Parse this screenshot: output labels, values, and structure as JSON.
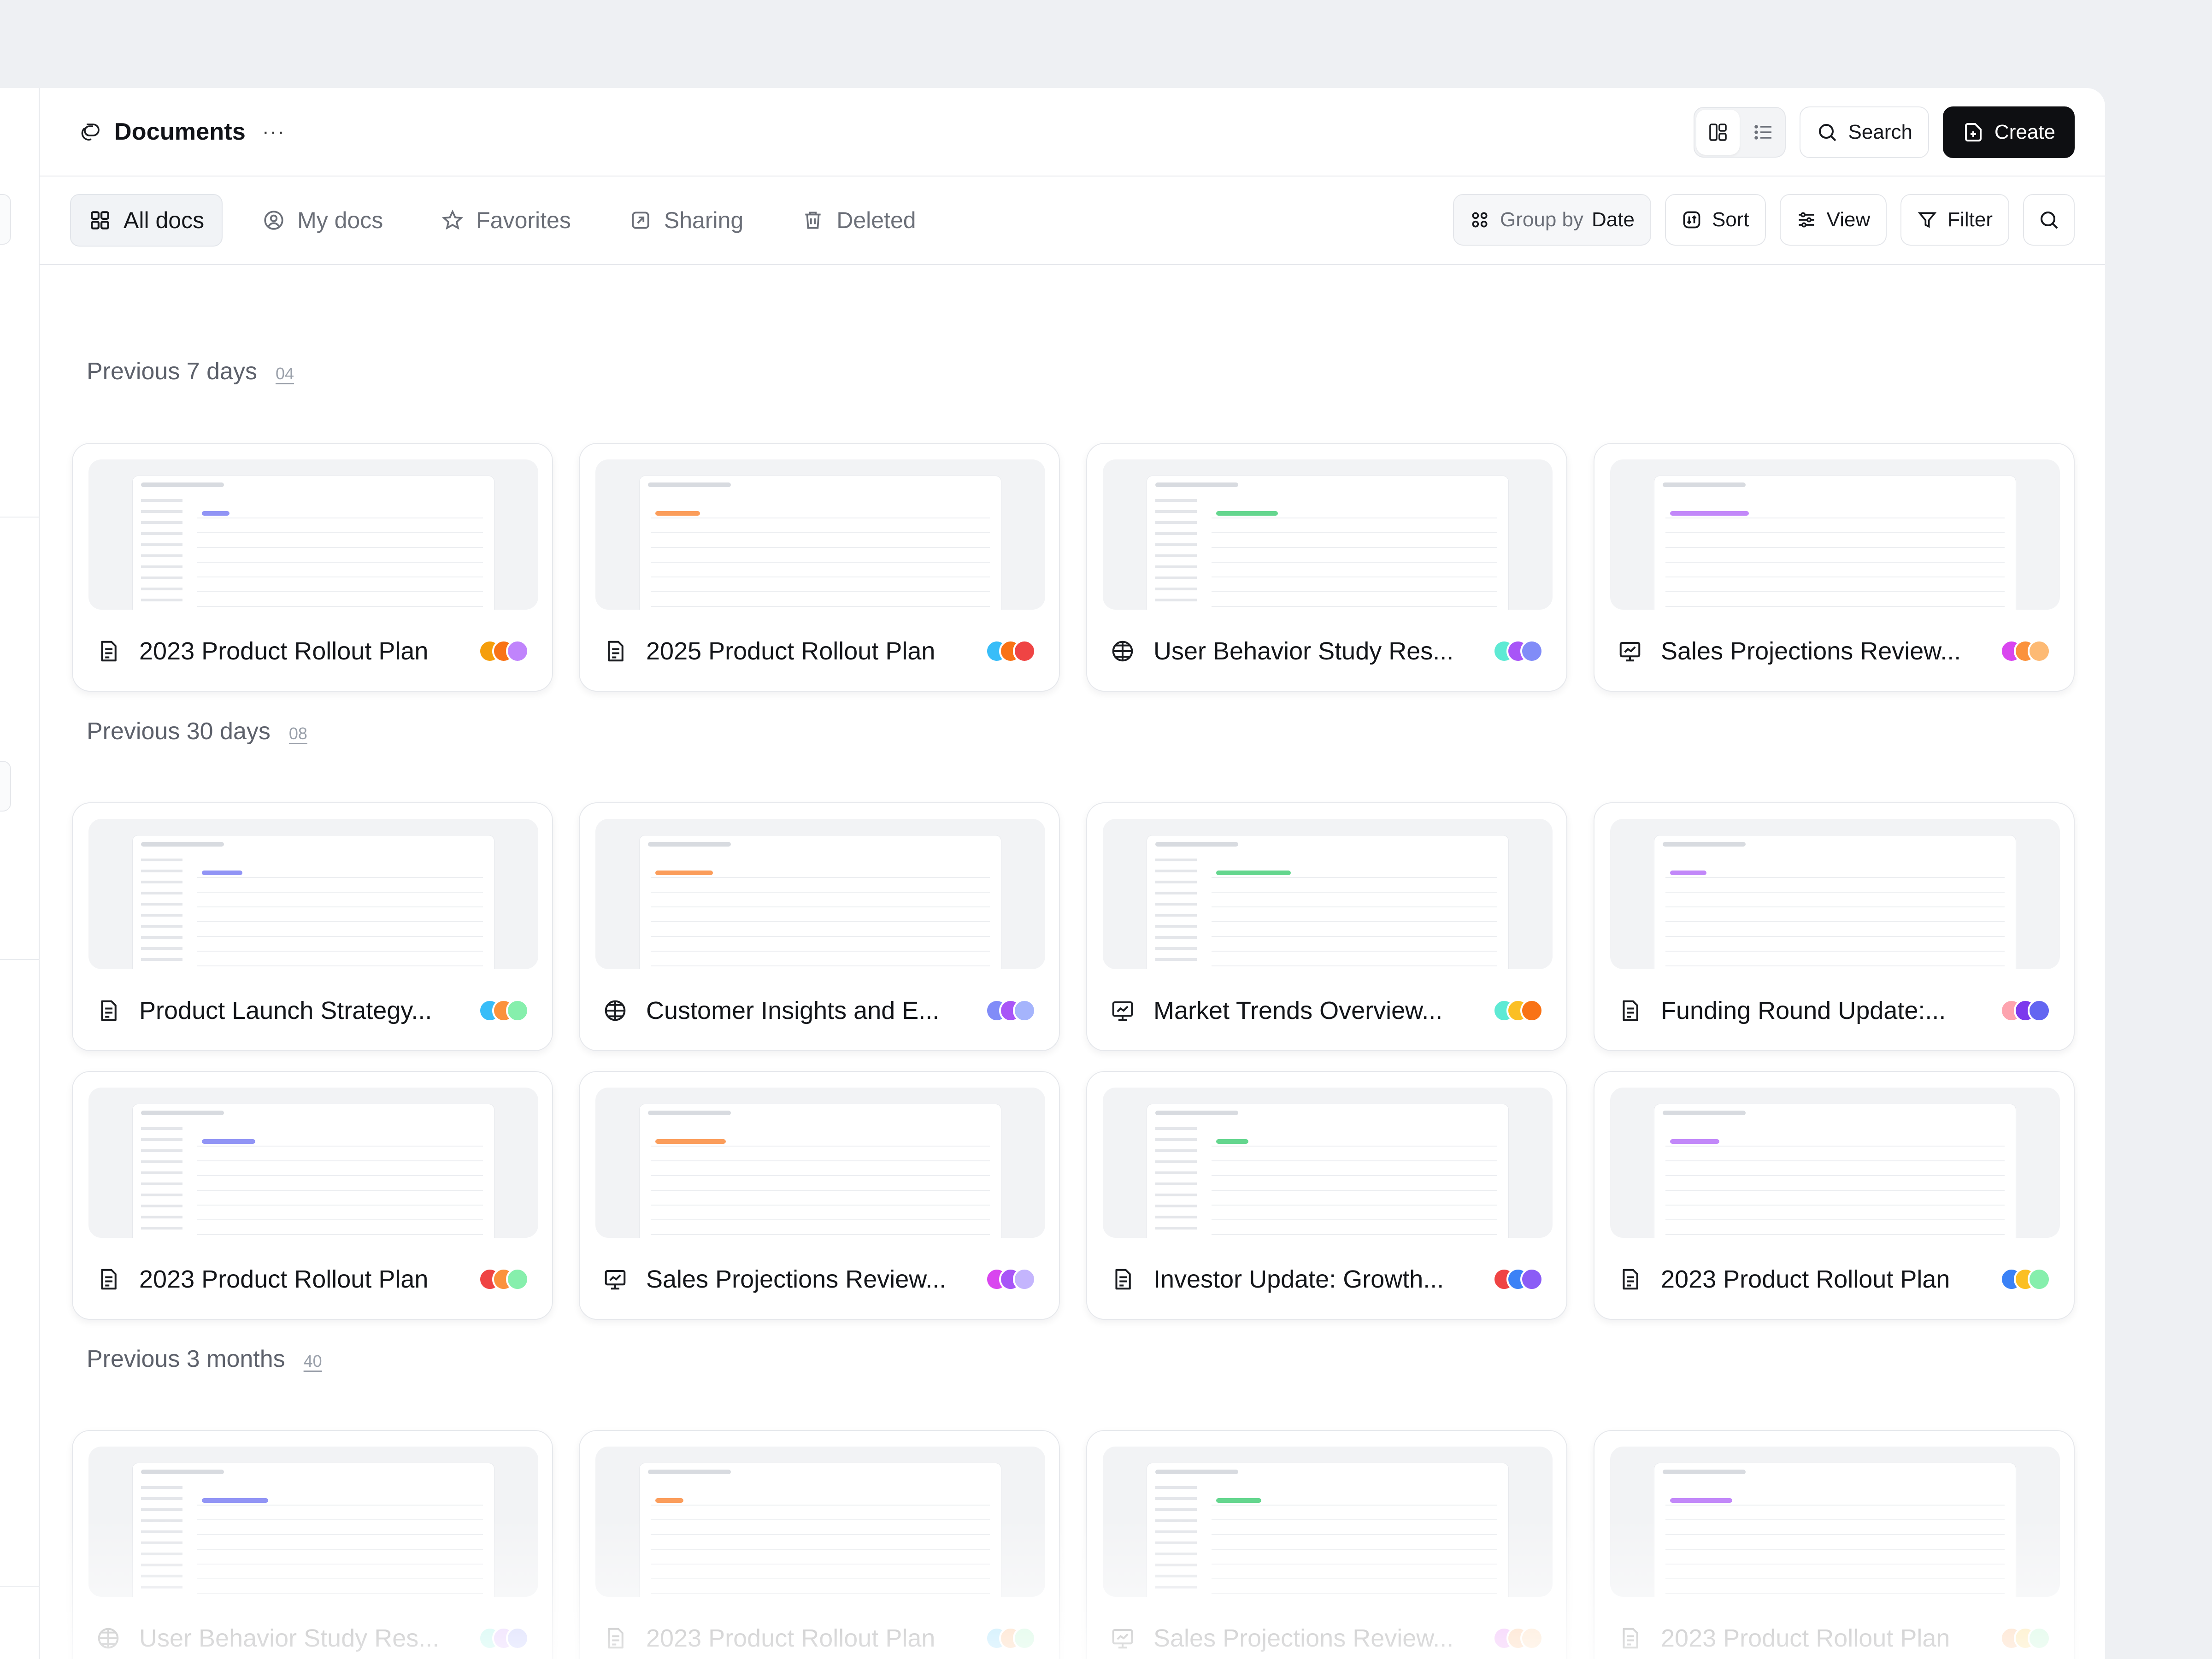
{
  "header": {
    "title": "Documents",
    "more": "···",
    "search_label": "Search",
    "create_label": "Create"
  },
  "tabs": [
    {
      "label": "All docs",
      "icon": "grid-icon",
      "active": true
    },
    {
      "label": "My docs",
      "icon": "user-circle-icon",
      "active": false
    },
    {
      "label": "Favorites",
      "icon": "star-icon",
      "active": false
    },
    {
      "label": "Sharing",
      "icon": "share-icon",
      "active": false
    },
    {
      "label": "Deleted",
      "icon": "trash-icon",
      "active": false
    }
  ],
  "tools": {
    "group_prefix": "Group by",
    "group_value": "Date",
    "sort": "Sort",
    "view": "View",
    "filter": "Filter"
  },
  "sections": [
    {
      "label": "Previous 7 days",
      "count": "04",
      "cards": [
        {
          "title": "2023 Product Rollout Plan",
          "icon": "document-icon",
          "avatars": [
            "#f59e0b",
            "#f97316",
            "#c084fc"
          ]
        },
        {
          "title": "2025 Product Rollout Plan",
          "icon": "document-icon",
          "avatars": [
            "#38bdf8",
            "#f97316",
            "#ef4444"
          ]
        },
        {
          "title": "User Behavior Study Res...",
          "icon": "table-icon",
          "avatars": [
            "#5eead4",
            "#a855f7",
            "#818cf8"
          ]
        },
        {
          "title": "Sales Projections Review...",
          "icon": "presentation-icon",
          "avatars": [
            "#d946ef",
            "#fb923c",
            "#fdba74"
          ]
        }
      ]
    },
    {
      "label": "Previous 30 days",
      "count": "08",
      "cards": [
        {
          "title": "Product Launch Strategy...",
          "icon": "document-icon",
          "avatars": [
            "#38bdf8",
            "#fb923c",
            "#86efac"
          ]
        },
        {
          "title": "Customer Insights and E...",
          "icon": "table-icon",
          "avatars": [
            "#818cf8",
            "#a855f7",
            "#a5b4fc"
          ]
        },
        {
          "title": "Market Trends Overview...",
          "icon": "presentation-icon",
          "avatars": [
            "#5eead4",
            "#fbbf24",
            "#f97316"
          ]
        },
        {
          "title": "Funding Round Update:...",
          "icon": "document-icon",
          "avatars": [
            "#fda4af",
            "#7c3aed",
            "#6366f1"
          ]
        },
        {
          "title": "2023 Product Rollout Plan",
          "icon": "document-icon",
          "avatars": [
            "#ef4444",
            "#fb923c",
            "#86efac"
          ]
        },
        {
          "title": "Sales Projections Review...",
          "icon": "presentation-icon",
          "avatars": [
            "#d946ef",
            "#a855f7",
            "#c4b5fd"
          ]
        },
        {
          "title": "Investor Update: Growth...",
          "icon": "document-icon",
          "avatars": [
            "#ef4444",
            "#3b82f6",
            "#8b5cf6"
          ]
        },
        {
          "title": "2023 Product Rollout Plan",
          "icon": "document-icon",
          "avatars": [
            "#3b82f6",
            "#fbbf24",
            "#86efac"
          ]
        }
      ]
    },
    {
      "label": "Previous 3 months",
      "count": "40",
      "cards": [
        {
          "title": "User Behavior Study Res...",
          "icon": "table-icon",
          "avatars": [
            "#5eead4",
            "#c084fc",
            "#818cf8"
          ]
        },
        {
          "title": "2023 Product Rollout Plan",
          "icon": "document-icon",
          "avatars": [
            "#38bdf8",
            "#fb923c",
            "#86efac"
          ]
        },
        {
          "title": "Sales Projections Review...",
          "icon": "presentation-icon",
          "avatars": [
            "#d946ef",
            "#fb923c",
            "#fdba74"
          ]
        },
        {
          "title": "2023 Product Rollout Plan",
          "icon": "document-icon",
          "avatars": [
            "#fb923c",
            "#fbbf24",
            "#86efac"
          ]
        }
      ]
    }
  ]
}
